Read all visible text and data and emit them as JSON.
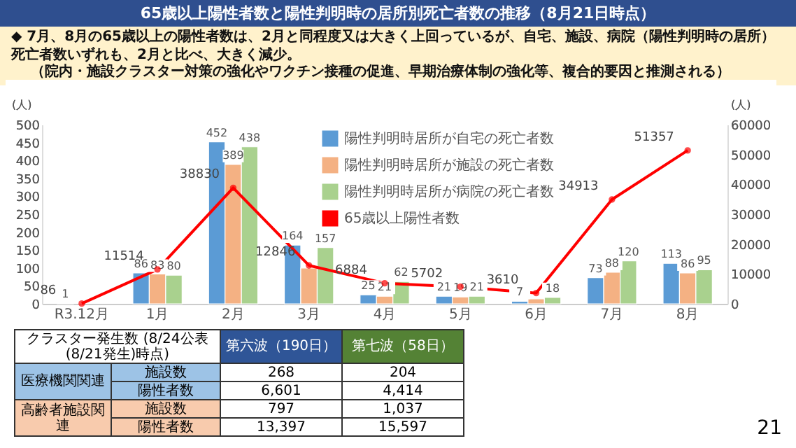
{
  "chart_data": {
    "type": "bar",
    "title": "65歳以上陽性者数と陽性判明時の居所別死亡者数の推移（8月21日時点）",
    "categories": [
      "R3.12月",
      "1月",
      "2月",
      "3月",
      "4月",
      "5月",
      "6月",
      "7月",
      "8月"
    ],
    "series": [
      {
        "name": "陽性判明時居所が自宅の死亡者数",
        "type": "bar",
        "color": "#5b9bd5",
        "values": [
          1,
          86,
          452,
          164,
          25,
          21,
          7,
          73,
          113
        ],
        "value_labels": [
          "1",
          "86",
          "452",
          "164",
          "25",
          "21",
          "7",
          "73",
          "113"
        ]
      },
      {
        "name": "陽性判明時居所が施設の死亡者数",
        "type": "bar",
        "color": "#f4b183",
        "values": [
          null,
          83,
          389,
          100,
          21,
          19,
          14,
          88,
          86
        ],
        "value_labels": [
          null,
          "83",
          "389",
          null,
          "21",
          "19",
          null,
          "88",
          "86"
        ]
      },
      {
        "name": "陽性判明時居所が病院の死亡者数",
        "type": "bar",
        "color": "#a9d18e",
        "values": [
          null,
          80,
          438,
          157,
          62,
          21,
          18,
          120,
          95
        ],
        "value_labels": [
          null,
          "80",
          "438",
          "157",
          "62",
          "21",
          "18",
          "120",
          "95"
        ]
      },
      {
        "name": "65歳以上陽性者数",
        "type": "line",
        "axis": "y2",
        "color": "#ff0000",
        "values": [
          86,
          11514,
          38830,
          12846,
          6884,
          5702,
          3610,
          34913,
          51357
        ],
        "value_labels": [
          "86",
          "11514",
          "38830",
          "12846",
          "6884",
          "5702",
          "3610",
          "34913",
          "51357"
        ]
      }
    ],
    "ylim": [
      0,
      500
    ],
    "yticks": [
      0,
      50,
      100,
      150,
      200,
      250,
      300,
      350,
      400,
      450,
      500
    ],
    "ylabel": "(人)",
    "y2lim": [
      0,
      60000
    ],
    "y2ticks": [
      0,
      10000,
      20000,
      30000,
      40000,
      50000,
      60000
    ],
    "y2label": "(人)",
    "legend": "top right",
    "marker": "circle",
    "annotations": [
      "◆ 7月、8月の65歳以上の陽性者数は、2月と同程度又は大きく上回っているが、自宅、施設、病院（陽性判明時の居所）死亡者数いずれも、2月と比べ、大きく減少。",
      "（院内・施設クラスター対策の強化やワクチン接種の促進、早期治療体制の強化等、複合的要因と推測される）",
      "クラスター発生数 (8/24公表(8/21発生)時点)",
      "第六波（190日）",
      "第七波（58日）",
      "医療機関関連",
      "施設数",
      "268",
      "204",
      "陽性者数",
      "6,601",
      "4,414",
      "高齢者施設関連",
      "施設数",
      "797",
      "1,037",
      "陽性者数",
      "13,397",
      "15,597",
      "21"
    ]
  }
}
